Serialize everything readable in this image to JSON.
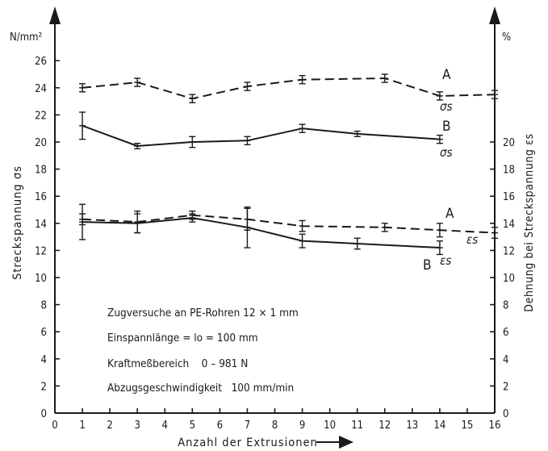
{
  "chart_data": {
    "type": "line",
    "xlabel": "Anzahl der Extrusionen",
    "x_ticks": [
      0,
      1,
      2,
      3,
      4,
      5,
      6,
      7,
      8,
      9,
      10,
      11,
      12,
      13,
      14,
      15,
      16
    ],
    "xlim": [
      0,
      16
    ],
    "left_axis": {
      "label": "Streckspannung σs",
      "unit": "N/mm²",
      "ylim": [
        0,
        27
      ],
      "ticks": [
        0,
        2,
        4,
        6,
        8,
        10,
        12,
        14,
        16,
        18,
        20,
        22,
        24,
        26
      ]
    },
    "right_axis": {
      "label": "Dehnung bei Streckspannung εs",
      "unit": "%",
      "ylim": [
        0,
        27
      ],
      "ticks": [
        0,
        2,
        4,
        6,
        8,
        10,
        12,
        14,
        16,
        18,
        20
      ]
    },
    "series": [
      {
        "name": "A",
        "label": "A",
        "quantity": "σs",
        "style": "dashed",
        "axis": "left",
        "x": [
          1,
          3,
          5,
          7,
          9,
          12,
          14,
          16
        ],
        "y": [
          24.0,
          24.4,
          23.2,
          24.1,
          24.6,
          24.7,
          23.4,
          23.5
        ],
        "err": [
          0.3,
          0.3,
          0.3,
          0.3,
          0.3,
          0.3,
          0.3,
          0.3
        ]
      },
      {
        "name": "B",
        "label": "B",
        "quantity": "σs",
        "style": "solid",
        "axis": "left",
        "x": [
          1,
          3,
          5,
          7,
          9,
          11,
          14
        ],
        "y": [
          21.2,
          19.7,
          20.0,
          20.1,
          21.0,
          20.6,
          20.2
        ],
        "err": [
          1.0,
          0.2,
          0.4,
          0.3,
          0.3,
          0.2,
          0.3
        ]
      },
      {
        "name": "A",
        "label": "A",
        "quantity": "εs",
        "style": "dashed",
        "axis": "right",
        "x": [
          1,
          3,
          5,
          7,
          9,
          12,
          14,
          16
        ],
        "y": [
          14.3,
          14.1,
          14.6,
          14.3,
          13.8,
          13.7,
          13.5,
          13.3
        ],
        "err": [
          0.4,
          0.8,
          0.3,
          0.8,
          0.4,
          0.3,
          0.5,
          0.4
        ]
      },
      {
        "name": "B",
        "label": "B",
        "quantity": "εs",
        "style": "solid",
        "axis": "right",
        "x": [
          1,
          3,
          5,
          7,
          9,
          11,
          14
        ],
        "y": [
          14.1,
          14.0,
          14.4,
          13.7,
          12.7,
          12.5,
          12.2
        ],
        "err": [
          1.3,
          0.7,
          0.3,
          1.5,
          0.5,
          0.4,
          0.5
        ]
      }
    ],
    "annotations": [
      "Zugversuche an PE-Rohren 12 × 1 mm",
      "Einspannlänge = lo = 100 mm",
      "Kraftmeßbereich    0 – 981 N",
      "Abzugsgeschwindigkeit   100 mm/min"
    ],
    "grid": false
  }
}
